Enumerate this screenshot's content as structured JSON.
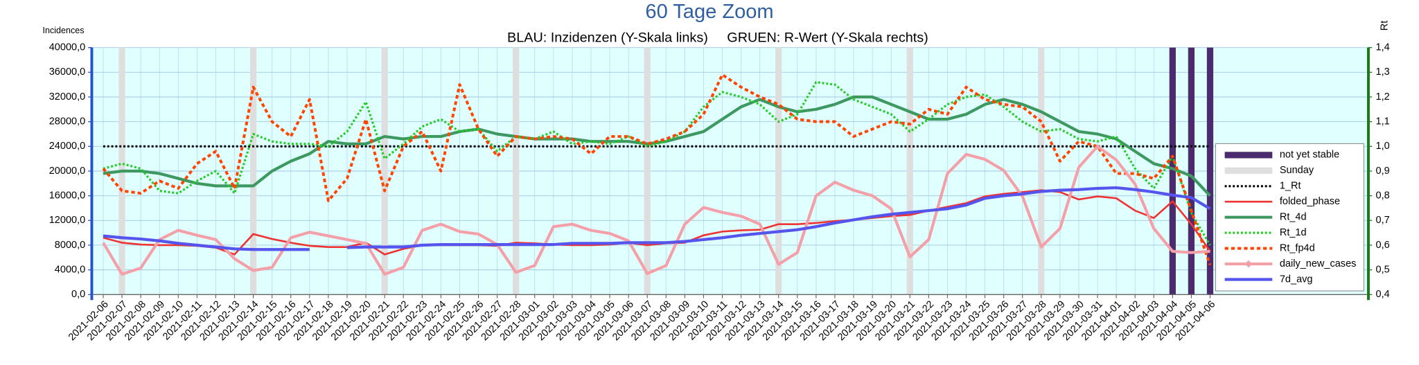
{
  "chart_data": {
    "type": "line",
    "title": "60 Tage Zoom",
    "subtitle": "BLAU: Inzidenzen (Y-Skala links)     GRUEN: R-Wert (Y-Skala rechts)",
    "y_label": "Incidences",
    "y2_label": "Rt",
    "categories": [
      "2021-02-06",
      "2021-02-07",
      "2021-02-08",
      "2021-02-09",
      "2021-02-10",
      "2021-02-11",
      "2021-02-12",
      "2021-02-13",
      "2021-02-14",
      "2021-02-15",
      "2021-02-16",
      "2021-02-17",
      "2021-02-18",
      "2021-02-19",
      "2021-02-20",
      "2021-02-21",
      "2021-02-22",
      "2021-02-23",
      "2021-02-24",
      "2021-02-25",
      "2021-02-26",
      "2021-02-27",
      "2021-02-28",
      "2021-03-01",
      "2021-03-02",
      "2021-03-03",
      "2021-03-04",
      "2021-03-05",
      "2021-03-06",
      "2021-03-07",
      "2021-03-08",
      "2021-03-09",
      "2021-03-10",
      "2021-03-11",
      "2021-03-12",
      "2021-03-13",
      "2021-03-14",
      "2021-03-15",
      "2021-03-16",
      "2021-03-17",
      "2021-03-18",
      "2021-03-19",
      "2021-03-20",
      "2021-03-21",
      "2021-03-22",
      "2021-03-23",
      "2021-03-24",
      "2021-03-25",
      "2021-03-26",
      "2021-03-27",
      "2021-03-28",
      "2021-03-29",
      "2021-03-30",
      "2021-03-31",
      "2021-04-01",
      "2021-04-02",
      "2021-04-03",
      "2021-04-04",
      "2021-04-05",
      "2021-04-06"
    ],
    "ylim": [
      0,
      40000
    ],
    "yticks": [
      {
        "value": 0,
        "label": "0,0"
      },
      {
        "value": 4000,
        "label": "4000,0"
      },
      {
        "value": 8000,
        "label": "8000,0"
      },
      {
        "value": 12000,
        "label": "12000,0"
      },
      {
        "value": 16000,
        "label": "16000,0"
      },
      {
        "value": 20000,
        "label": "20000,0"
      },
      {
        "value": 24000,
        "label": "24000,0"
      },
      {
        "value": 28000,
        "label": "28000,0"
      },
      {
        "value": 32000,
        "label": "32000,0"
      },
      {
        "value": 36000,
        "label": "36000,0"
      },
      {
        "value": 40000,
        "label": "40000,0"
      }
    ],
    "y2lim": [
      0.4,
      1.4
    ],
    "y2ticks": [
      {
        "value": 0.4,
        "label": "0,4"
      },
      {
        "value": 0.5,
        "label": "0,5"
      },
      {
        "value": 0.6,
        "label": "0,6"
      },
      {
        "value": 0.7,
        "label": "0,7"
      },
      {
        "value": 0.8,
        "label": "0,8"
      },
      {
        "value": 0.9,
        "label": "0,9"
      },
      {
        "value": 1.0,
        "label": "1,0"
      },
      {
        "value": 1.1,
        "label": "1,1"
      },
      {
        "value": 1.2,
        "label": "1,2"
      },
      {
        "value": 1.3,
        "label": "1,3"
      },
      {
        "value": 1.4,
        "label": "1,4"
      }
    ],
    "grid": true,
    "legend": "lower right",
    "series": [
      {
        "name": "not yet stable",
        "type": "bar",
        "color": "#4b2a6e",
        "values": [
          null,
          null,
          null,
          null,
          null,
          null,
          null,
          null,
          null,
          null,
          null,
          null,
          null,
          null,
          null,
          null,
          null,
          null,
          null,
          null,
          null,
          null,
          null,
          null,
          null,
          null,
          null,
          null,
          null,
          null,
          null,
          null,
          null,
          null,
          null,
          null,
          null,
          null,
          null,
          null,
          null,
          null,
          null,
          null,
          null,
          null,
          null,
          null,
          null,
          null,
          null,
          null,
          null,
          null,
          null,
          null,
          null,
          40000,
          40000,
          40000
        ]
      },
      {
        "name": "Sunday",
        "type": "bar",
        "color": "#dedede",
        "values": [
          null,
          40000,
          null,
          null,
          null,
          null,
          null,
          null,
          40000,
          null,
          null,
          null,
          null,
          null,
          null,
          40000,
          null,
          null,
          null,
          null,
          null,
          null,
          40000,
          null,
          null,
          null,
          null,
          null,
          null,
          40000,
          null,
          null,
          null,
          null,
          null,
          null,
          40000,
          null,
          null,
          null,
          null,
          null,
          null,
          40000,
          null,
          null,
          null,
          null,
          null,
          null,
          40000,
          null,
          null,
          null,
          null,
          null,
          null,
          null,
          null,
          null
        ]
      },
      {
        "name": "1_Rt",
        "type": "line",
        "style": "dotted",
        "axis": "y2",
        "color": "#000000",
        "values": [
          1.0,
          1.0,
          1.0,
          1.0,
          1.0,
          1.0,
          1.0,
          1.0,
          1.0,
          1.0,
          1.0,
          1.0,
          1.0,
          1.0,
          1.0,
          1.0,
          1.0,
          1.0,
          1.0,
          1.0,
          1.0,
          1.0,
          1.0,
          1.0,
          1.0,
          1.0,
          1.0,
          1.0,
          1.0,
          1.0,
          1.0,
          1.0,
          1.0,
          1.0,
          1.0,
          1.0,
          1.0,
          1.0,
          1.0,
          1.0,
          1.0,
          1.0,
          1.0,
          1.0,
          1.0,
          1.0,
          1.0,
          1.0,
          1.0,
          1.0,
          1.0,
          1.0,
          1.0,
          1.0,
          1.0,
          1.0,
          1.0,
          1.0,
          1.0,
          1.0
        ]
      },
      {
        "name": "folded_phase",
        "type": "line",
        "style": "solid",
        "color": "#ee3333",
        "values": [
          9200,
          8400,
          8100,
          8000,
          8000,
          7900,
          7600,
          6500,
          9800,
          9000,
          8400,
          7900,
          7700,
          7700,
          8400,
          6500,
          7400,
          8000,
          8000,
          8000,
          8000,
          7900,
          8400,
          8300,
          8100,
          8000,
          8000,
          8100,
          8400,
          8000,
          8300,
          8400,
          9600,
          10200,
          10400,
          10500,
          11400,
          11400,
          11600,
          11900,
          12100,
          12400,
          12700,
          12900,
          13600,
          14200,
          14800,
          15900,
          16300,
          16600,
          16900,
          16600,
          15400,
          15900,
          15600,
          13600,
          12400,
          15100,
          11400,
          7000
        ]
      },
      {
        "name": "Rt_4d",
        "type": "line",
        "style": "thick",
        "axis": "y2",
        "color": "#3d9960",
        "values": [
          0.89,
          0.9,
          0.9,
          0.89,
          0.87,
          0.85,
          0.84,
          0.84,
          0.84,
          0.9,
          0.94,
          0.97,
          1.02,
          1.01,
          1.01,
          1.04,
          1.03,
          1.04,
          1.04,
          1.06,
          1.07,
          1.05,
          1.04,
          1.03,
          1.03,
          1.03,
          1.02,
          1.02,
          1.02,
          1.01,
          1.02,
          1.04,
          1.06,
          1.11,
          1.16,
          1.19,
          1.16,
          1.14,
          1.15,
          1.17,
          1.2,
          1.2,
          1.17,
          1.14,
          1.11,
          1.11,
          1.13,
          1.17,
          1.19,
          1.17,
          1.14,
          1.1,
          1.06,
          1.05,
          1.03,
          0.98,
          0.93,
          0.91,
          0.88,
          0.8
        ]
      },
      {
        "name": "Rt_1d",
        "type": "line",
        "style": "dotted",
        "axis": "y2",
        "color": "#22cc22",
        "values": [
          0.91,
          0.93,
          0.91,
          0.82,
          0.81,
          0.86,
          0.9,
          0.81,
          1.05,
          1.02,
          1.01,
          1.01,
          1.0,
          1.06,
          1.18,
          0.95,
          1.01,
          1.08,
          1.11,
          1.06,
          1.07,
          0.98,
          1.04,
          1.03,
          1.06,
          1.01,
          1.02,
          1.01,
          1.04,
          1.0,
          1.02,
          1.06,
          1.16,
          1.22,
          1.2,
          1.17,
          1.1,
          1.13,
          1.26,
          1.25,
          1.19,
          1.16,
          1.13,
          1.06,
          1.11,
          1.17,
          1.2,
          1.21,
          1.16,
          1.1,
          1.06,
          1.07,
          1.03,
          1.02,
          1.04,
          0.91,
          0.83,
          0.96,
          0.73,
          0.6
        ]
      },
      {
        "name": "Rt_fp4d",
        "type": "line",
        "style": "dashed",
        "axis": "y2",
        "color": "#ff4500",
        "values": [
          0.91,
          0.82,
          0.81,
          0.86,
          0.83,
          0.93,
          0.98,
          0.83,
          1.24,
          1.1,
          1.04,
          1.19,
          0.78,
          0.87,
          1.11,
          0.82,
          1.0,
          1.06,
          0.9,
          1.25,
          1.07,
          0.96,
          1.04,
          1.03,
          1.04,
          1.03,
          0.97,
          1.04,
          1.04,
          1.01,
          1.03,
          1.06,
          1.13,
          1.29,
          1.24,
          1.2,
          1.17,
          1.11,
          1.1,
          1.1,
          1.04,
          1.07,
          1.1,
          1.09,
          1.15,
          1.13,
          1.24,
          1.19,
          1.17,
          1.16,
          1.1,
          0.94,
          1.02,
          1.0,
          0.89,
          0.89,
          0.87,
          0.96,
          0.74,
          0.52
        ]
      },
      {
        "name": "daily_new_cases",
        "type": "line",
        "style": "thick",
        "legend_marker": "diamond",
        "color": "#f4a0a8",
        "values": [
          8400,
          3300,
          4300,
          8900,
          10400,
          9600,
          8900,
          5800,
          3900,
          4400,
          9200,
          10100,
          9500,
          8900,
          8300,
          3300,
          4400,
          10400,
          11400,
          10200,
          9800,
          8100,
          3600,
          4700,
          11000,
          11400,
          10400,
          9900,
          8700,
          3400,
          4700,
          11400,
          14100,
          13300,
          12700,
          11400,
          4900,
          6800,
          16000,
          18200,
          16900,
          16000,
          13900,
          6100,
          8900,
          19600,
          22700,
          21900,
          20100,
          15900,
          7700,
          10700,
          20600,
          24000,
          21800,
          17900,
          10700,
          7000,
          6800,
          7000
        ]
      },
      {
        "name": "7d_avg",
        "type": "line",
        "style": "thick",
        "color": "#5555ee",
        "values": [
          9500,
          9200,
          9000,
          8700,
          8300,
          8000,
          7700,
          7400,
          7300,
          7300,
          7300,
          7300,
          null,
          7600,
          7700,
          7700,
          7700,
          8000,
          8100,
          8100,
          8100,
          8100,
          8100,
          8100,
          8100,
          8300,
          8300,
          8300,
          8400,
          8400,
          8400,
          8600,
          8900,
          9200,
          9600,
          9900,
          10200,
          10500,
          11000,
          11600,
          12100,
          12600,
          13000,
          13300,
          13600,
          13900,
          14500,
          15600,
          16000,
          16300,
          16700,
          16900,
          17000,
          17200,
          17300,
          17000,
          16600,
          16100,
          15700,
          13900
        ]
      }
    ]
  }
}
